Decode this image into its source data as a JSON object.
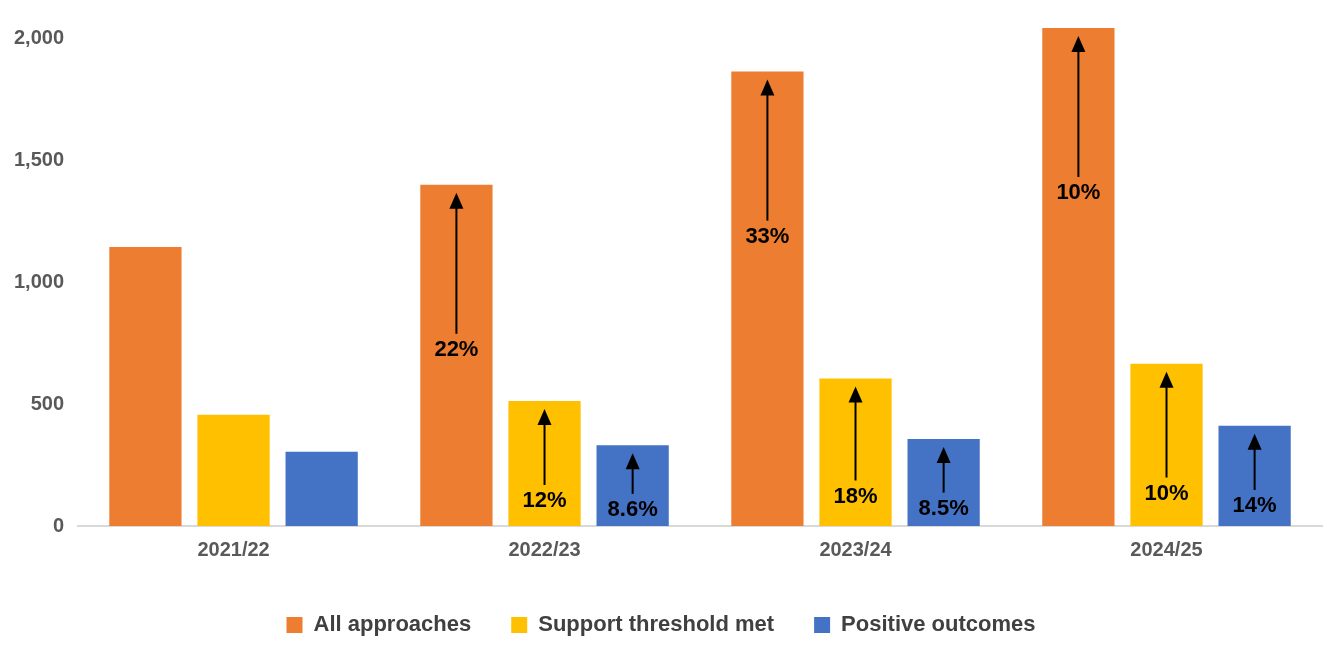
{
  "chart_data": {
    "type": "bar",
    "categories": [
      "2021/22",
      "2022/23",
      "2023/24",
      "2024/25"
    ],
    "series": [
      {
        "name": "All approaches",
        "color": "#ed7d31",
        "values": [
          1144,
          1399,
          1863,
          2042
        ]
      },
      {
        "name": "Support threshold met",
        "color": "#ffc000",
        "values": [
          456,
          513,
          605,
          665
        ]
      },
      {
        "name": "Positive outcomes",
        "color": "#4472c4",
        "values": [
          304,
          331,
          357,
          411
        ]
      }
    ],
    "annotations": [
      "22%",
      "12%",
      "8.6%",
      "33%",
      "18%",
      "8.5%",
      "10%",
      "10%",
      "14%"
    ],
    "ylim": [
      0,
      2050
    ],
    "yticks": [
      {
        "value": 0,
        "label": "0"
      },
      {
        "value": 500,
        "label": "500"
      },
      {
        "value": 1000,
        "label": "1,000"
      },
      {
        "value": 1500,
        "label": "1,500"
      },
      {
        "value": 2000,
        "label": "2,000"
      }
    ],
    "grid": false,
    "legend": "bottom"
  }
}
